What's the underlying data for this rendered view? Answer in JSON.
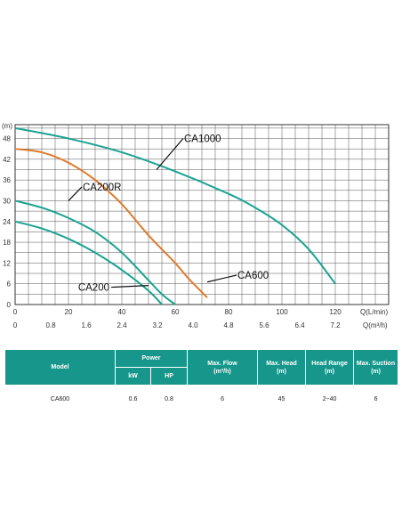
{
  "chart_data": {
    "type": "line",
    "ylabel": "(m)",
    "xlabel": "Q(L/min)",
    "x2label": "Q(m³/h)",
    "xlim": [
      0,
      140
    ],
    "ylim": [
      0,
      52
    ],
    "x_ticks": [
      0,
      20,
      40,
      60,
      80,
      100,
      120
    ],
    "x2_ticks": [
      "0",
      "0.8",
      "1.6",
      "2.4",
      "3.2",
      "4.0",
      "4.8",
      "5.6",
      "6.4",
      "7.2"
    ],
    "y_ticks": [
      0,
      6,
      12,
      18,
      24,
      30,
      36,
      42,
      48
    ],
    "grid": true,
    "series": [
      {
        "name": "CA1000",
        "color": "#1aa392",
        "x": [
          0,
          20,
          40,
          60,
          80,
          90,
          100,
          110,
          120
        ],
        "y": [
          51,
          48,
          44,
          38.5,
          32,
          28,
          23,
          16,
          6
        ]
      },
      {
        "name": "CA600",
        "color": "#e07a2c",
        "x": [
          0,
          10,
          20,
          30,
          40,
          50,
          60,
          65,
          72
        ],
        "y": [
          45,
          44,
          41,
          36,
          29,
          20,
          12,
          7.5,
          2
        ]
      },
      {
        "name": "CA200R",
        "color": "#1aa392",
        "x": [
          0,
          10,
          20,
          30,
          40,
          50,
          55,
          60
        ],
        "y": [
          30,
          28,
          25,
          21,
          15,
          7,
          3,
          0
        ]
      },
      {
        "name": "CA200",
        "color": "#1aa392",
        "x": [
          0,
          10,
          20,
          30,
          40,
          50,
          55
        ],
        "y": [
          24,
          22,
          19,
          15,
          10,
          4,
          0
        ]
      }
    ]
  },
  "table": {
    "headers": {
      "model": "Model",
      "power": "Power",
      "kw": "kW",
      "hp": "HP",
      "max_flow": "Max. Flow",
      "max_flow_unit": "(m³/h)",
      "max_head": "Max. Head",
      "max_head_unit": "(m)",
      "head_range": "Head Range",
      "head_range_unit": "(m)",
      "max_suction": "Max. Suction",
      "max_suction_unit": "(m)"
    },
    "rows": [
      {
        "model": "CA600",
        "kw": "0.6",
        "hp": "0.8",
        "max_flow": "6",
        "max_head": "45",
        "head_range": "2~40",
        "max_suction": "6"
      }
    ]
  }
}
